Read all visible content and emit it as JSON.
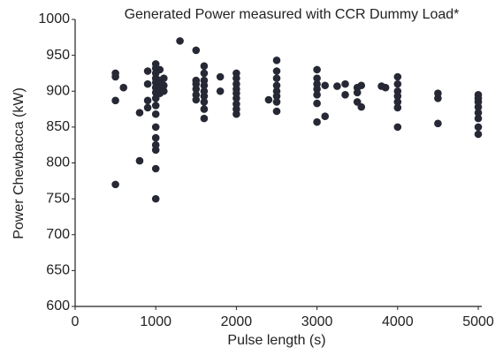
{
  "chart_data": {
    "type": "scatter",
    "title": "Generated Power measured with CCR Dummy Load*",
    "xlabel": "Pulse length (s)",
    "ylabel": "Power Chewbacca (kW)",
    "color": "#262935",
    "x": [
      500,
      500,
      500,
      500,
      600,
      800,
      800,
      900,
      900,
      900,
      900,
      1000,
      1000,
      1000,
      1000,
      1000,
      1000,
      1000,
      1000,
      1000,
      1000,
      1000,
      1000,
      1000,
      1000,
      1000,
      1000,
      1050,
      1050,
      1050,
      1050,
      1100,
      1100,
      1100,
      1300,
      1500,
      1500,
      1500,
      1500,
      1500,
      1500,
      1600,
      1600,
      1600,
      1600,
      1600,
      1600,
      1600,
      1600,
      1600,
      1800,
      1800,
      2000,
      2000,
      2000,
      2000,
      2000,
      2000,
      2000,
      2000,
      2000,
      2400,
      2500,
      2500,
      2500,
      2500,
      2500,
      2500,
      2500,
      2500,
      3000,
      3000,
      3000,
      3000,
      3000,
      3000,
      3000,
      3100,
      3100,
      3250,
      3350,
      3350,
      3500,
      3500,
      3500,
      3550,
      3550,
      3800,
      3850,
      4000,
      4000,
      4000,
      4000,
      4000,
      4000,
      4000,
      4500,
      4500,
      4500,
      5000,
      5000,
      5000,
      5000,
      5000,
      5000,
      5000,
      5000
    ],
    "values": [
      925,
      920,
      887,
      770,
      905,
      870,
      803,
      928,
      910,
      887,
      877,
      938,
      932,
      925,
      918,
      912,
      905,
      898,
      890,
      880,
      868,
      850,
      835,
      825,
      818,
      792,
      750,
      930,
      915,
      905,
      897,
      918,
      908,
      900,
      970,
      957,
      915,
      910,
      903,
      895,
      888,
      935,
      925,
      915,
      908,
      900,
      893,
      885,
      875,
      862,
      920,
      900,
      925,
      918,
      910,
      903,
      897,
      890,
      882,
      875,
      868,
      888,
      943,
      928,
      918,
      908,
      900,
      893,
      885,
      872,
      930,
      918,
      910,
      903,
      895,
      883,
      857,
      908,
      865,
      907,
      910,
      895,
      905,
      898,
      885,
      908,
      878,
      907,
      905,
      920,
      910,
      900,
      893,
      885,
      877,
      850,
      897,
      890,
      855,
      895,
      890,
      885,
      878,
      870,
      862,
      850,
      840
    ],
    "xlim": [
      0,
      5000
    ],
    "xticks": [
      0,
      1000,
      2000,
      3000,
      4000,
      5000
    ],
    "ylim": [
      600,
      1000
    ],
    "yticks": [
      600,
      650,
      700,
      750,
      800,
      850,
      900,
      950,
      1000
    ],
    "grid": false
  }
}
